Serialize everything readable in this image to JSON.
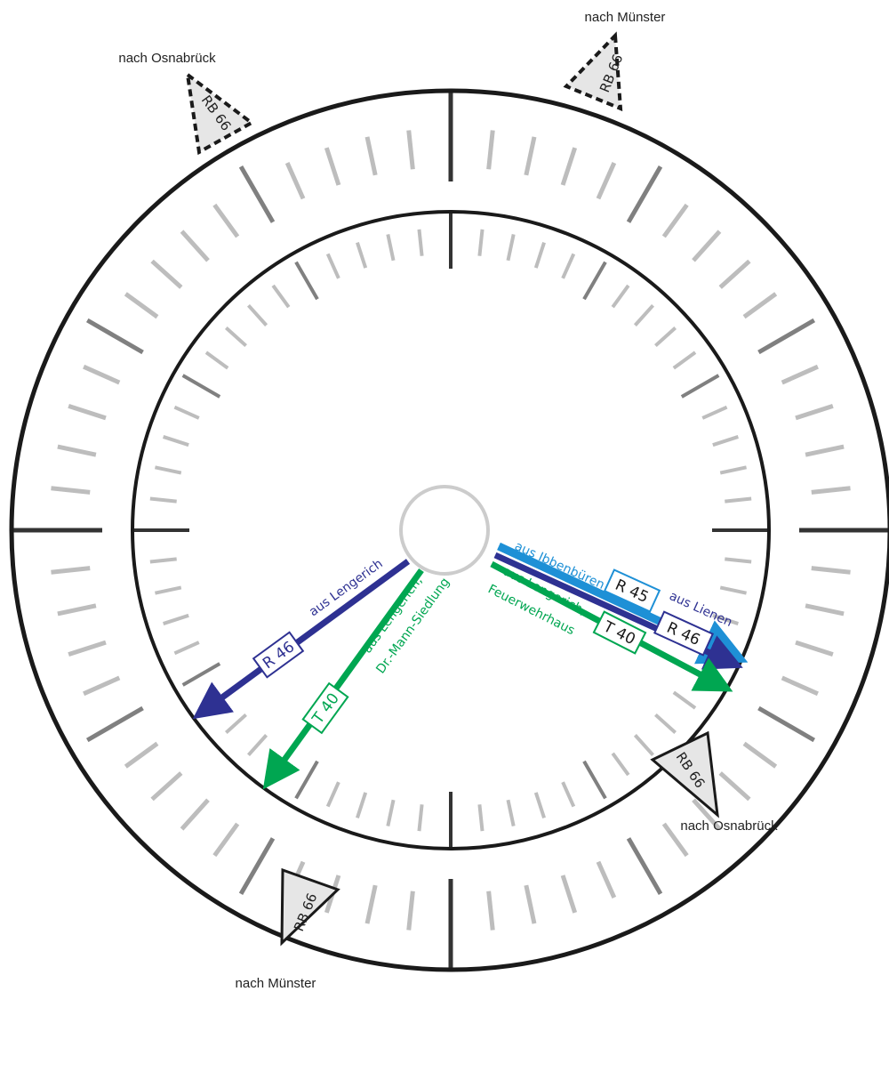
{
  "colors": {
    "ring": "#1a1a1a",
    "tick_major": "#333333",
    "tick_mid": "#808080",
    "tick_minor": "#bdbdbd",
    "center_circle": "#cccccc",
    "navy": "#2e3192",
    "green": "#00a651",
    "blue": "#1e90d6",
    "marker_fill": "#e6e6e6"
  },
  "outer_markers": [
    {
      "line": "RB 66",
      "destination": "nach Münster",
      "style": "dashed"
    },
    {
      "line": "RB 66",
      "destination": "nach Osnabrück",
      "style": "dashed"
    },
    {
      "line": "RB 66",
      "destination": "nach Osnabrück",
      "style": "solid"
    },
    {
      "line": "RB 66",
      "destination": "nach Münster",
      "style": "solid"
    }
  ],
  "arrows": [
    {
      "id": "r46-left",
      "line": "R 46",
      "label": "aus Lengerich",
      "color": "navy"
    },
    {
      "id": "t40-left",
      "line": "T 40",
      "label_lines": [
        "aus Lengerich,",
        "Dr.-Mann-Siedlung"
      ],
      "color": "green"
    },
    {
      "id": "r45-right",
      "line": "R 45",
      "label": "aus Ibbenbüren",
      "color": "blue"
    },
    {
      "id": "r46-right",
      "line": "R 46",
      "label": "aus Lienen",
      "color": "navy"
    },
    {
      "id": "t40-right",
      "line": "T 40",
      "label_lines": [
        "aus Lengerich,",
        "Feuerwehrhaus"
      ],
      "color": "green"
    }
  ]
}
